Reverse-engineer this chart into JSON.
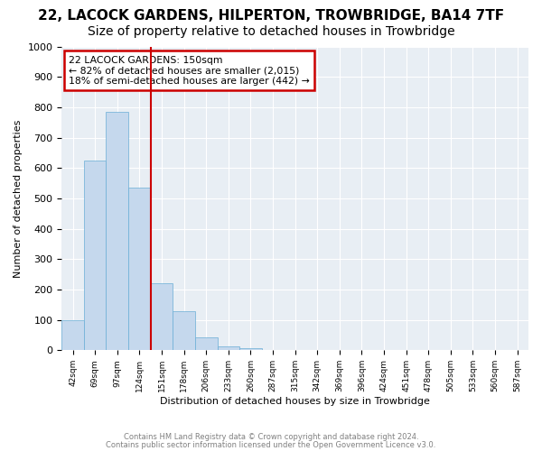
{
  "title": "22, LACOCK GARDENS, HILPERTON, TROWBRIDGE, BA14 7TF",
  "subtitle": "Size of property relative to detached houses in Trowbridge",
  "xlabel": "Distribution of detached houses by size in Trowbridge",
  "ylabel": "Number of detached properties",
  "bin_labels": [
    "42sqm",
    "69sqm",
    "97sqm",
    "124sqm",
    "151sqm",
    "178sqm",
    "206sqm",
    "233sqm",
    "260sqm",
    "287sqm",
    "315sqm",
    "342sqm",
    "369sqm",
    "396sqm",
    "424sqm",
    "451sqm",
    "478sqm",
    "505sqm",
    "533sqm",
    "560sqm",
    "587sqm"
  ],
  "bar_values": [
    100,
    625,
    785,
    535,
    220,
    130,
    42,
    12,
    8,
    0,
    0,
    0,
    0,
    0,
    0,
    0,
    0,
    0,
    0,
    0,
    0
  ],
  "bar_color": "#c5d8ed",
  "bar_edge_color": "#6aaed6",
  "bar_width": 1.0,
  "vline_x": 3.5,
  "vline_color": "#cc0000",
  "annotation_title": "22 LACOCK GARDENS: 150sqm",
  "annotation_line1": "← 82% of detached houses are smaller (2,015)",
  "annotation_line2": "18% of semi-detached houses are larger (442) →",
  "annotation_box_color": "#cc0000",
  "ylim": [
    0,
    1000
  ],
  "yticks": [
    0,
    100,
    200,
    300,
    400,
    500,
    600,
    700,
    800,
    900,
    1000
  ],
  "background_color": "#e8eef4",
  "footer_line1": "Contains HM Land Registry data © Crown copyright and database right 2024.",
  "footer_line2": "Contains public sector information licensed under the Open Government Licence v3.0.",
  "title_fontsize": 11,
  "subtitle_fontsize": 10
}
